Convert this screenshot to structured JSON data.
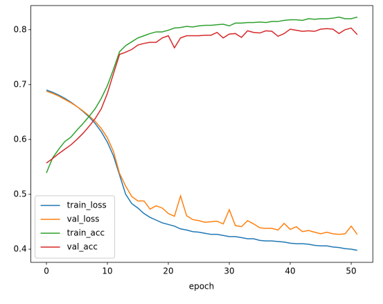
{
  "chart_data": {
    "type": "line",
    "xlabel": "epoch",
    "x": [
      0,
      1,
      2,
      3,
      4,
      5,
      6,
      7,
      8,
      9,
      10,
      11,
      12,
      13,
      14,
      15,
      16,
      17,
      18,
      19,
      20,
      21,
      22,
      23,
      24,
      25,
      26,
      27,
      28,
      29,
      30,
      31,
      32,
      33,
      34,
      35,
      36,
      37,
      38,
      39,
      40,
      41,
      42,
      43,
      44,
      45,
      46,
      47,
      48,
      49,
      50,
      51
    ],
    "series": [
      {
        "name": "train_loss",
        "color": "#1f77b4",
        "values": [
          0.69,
          0.686,
          0.681,
          0.675,
          0.668,
          0.66,
          0.651,
          0.641,
          0.629,
          0.614,
          0.595,
          0.57,
          0.535,
          0.5,
          0.483,
          0.475,
          0.465,
          0.458,
          0.453,
          0.448,
          0.445,
          0.442,
          0.437,
          0.435,
          0.432,
          0.431,
          0.429,
          0.427,
          0.427,
          0.425,
          0.423,
          0.423,
          0.421,
          0.419,
          0.419,
          0.416,
          0.415,
          0.415,
          0.414,
          0.413,
          0.411,
          0.41,
          0.41,
          0.409,
          0.407,
          0.406,
          0.406,
          0.404,
          0.403,
          0.401,
          0.4,
          0.398
        ]
      },
      {
        "name": "val_loss",
        "color": "#ff7f0e",
        "values": [
          0.688,
          0.684,
          0.679,
          0.673,
          0.667,
          0.66,
          0.652,
          0.643,
          0.633,
          0.62,
          0.603,
          0.578,
          0.538,
          0.515,
          0.496,
          0.488,
          0.488,
          0.473,
          0.479,
          0.475,
          0.465,
          0.46,
          0.497,
          0.461,
          0.454,
          0.452,
          0.449,
          0.45,
          0.451,
          0.446,
          0.472,
          0.443,
          0.441,
          0.452,
          0.446,
          0.439,
          0.438,
          0.438,
          0.435,
          0.447,
          0.436,
          0.441,
          0.432,
          0.434,
          0.431,
          0.428,
          0.431,
          0.428,
          0.427,
          0.428,
          0.442,
          0.427
        ]
      },
      {
        "name": "train_acc",
        "color": "#2ca02c",
        "values": [
          0.539,
          0.566,
          0.582,
          0.596,
          0.604,
          0.617,
          0.629,
          0.642,
          0.656,
          0.675,
          0.698,
          0.728,
          0.76,
          0.771,
          0.778,
          0.785,
          0.789,
          0.793,
          0.796,
          0.796,
          0.799,
          0.803,
          0.804,
          0.806,
          0.805,
          0.807,
          0.808,
          0.808,
          0.809,
          0.81,
          0.807,
          0.812,
          0.812,
          0.813,
          0.813,
          0.814,
          0.813,
          0.815,
          0.815,
          0.817,
          0.818,
          0.818,
          0.817,
          0.82,
          0.819,
          0.82,
          0.82,
          0.821,
          0.823,
          0.82,
          0.82,
          0.823
        ]
      },
      {
        "name": "val_acc",
        "color": "#d62728",
        "values": [
          0.557,
          0.565,
          0.574,
          0.582,
          0.59,
          0.6,
          0.611,
          0.624,
          0.638,
          0.656,
          0.684,
          0.72,
          0.755,
          0.759,
          0.764,
          0.772,
          0.775,
          0.777,
          0.777,
          0.785,
          0.789,
          0.767,
          0.785,
          0.789,
          0.789,
          0.789,
          0.79,
          0.79,
          0.795,
          0.785,
          0.792,
          0.793,
          0.786,
          0.798,
          0.795,
          0.794,
          0.798,
          0.797,
          0.788,
          0.793,
          0.801,
          0.799,
          0.797,
          0.798,
          0.797,
          0.801,
          0.802,
          0.801,
          0.793,
          0.8,
          0.803,
          0.791
        ]
      }
    ],
    "xlim": [
      -2.55,
      53.55
    ],
    "xticks": [
      0,
      10,
      20,
      30,
      40,
      50
    ],
    "ylim": [
      0.376,
      0.844
    ],
    "yticks": [
      0.4,
      0.5,
      0.6,
      0.7,
      0.8
    ],
    "grid": false,
    "legend": "lower left"
  }
}
